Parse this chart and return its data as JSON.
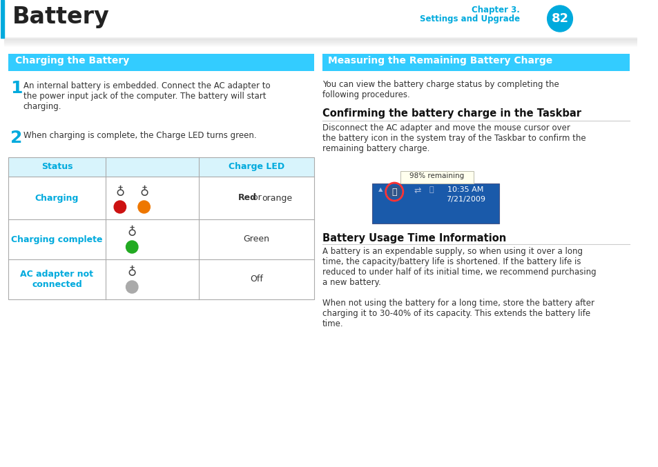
{
  "title": "Battery",
  "page_number": "82",
  "header_left_bar_color": "#00aadd",
  "page_circle_color": "#00aadd",
  "section_left_title": "Charging the Battery",
  "section_right_title": "Measuring the Remaining Battery Charge",
  "section_header_bg": "#33ccff",
  "section_header_text_color": "#ffffff",
  "step1_text": "An internal battery is embedded. Connect the AC adapter to\nthe power input jack of the computer. The battery will start\ncharging.",
  "step2_text": "When charging is complete, the Charge LED turns green.",
  "table_border_color": "#aaaaaa",
  "table_status_color": "#00aadd",
  "subheading1": "Confirming the battery charge in the Taskbar",
  "subheading1_text": "Disconnect the AC adapter and move the mouse cursor over\nthe battery icon in the system tray of the Taskbar to confirm the\nremaining battery charge.",
  "subheading2": "Battery Usage Time Information",
  "subheading2_text1": "A battery is an expendable supply, so when using it over a long\ntime, the capacity/battery life is shortened. If the battery life is\nreduced to under half of its initial time, we recommend purchasing\na new battery.",
  "subheading2_text2": "When not using the battery for a long time, store the battery after\ncharging it to 30-40% of its capacity. This extends the battery life\ntime.",
  "right_intro_text": "You can view the battery charge status by completing the\nfollowing procedures.",
  "taskbar_img_tooltip": "98% remaining",
  "taskbar_img_time": "10:35 AM",
  "taskbar_img_date": "7/21/2009",
  "taskbar_bg": "#1a5aaa",
  "divider_color": "#cccccc",
  "body_text_color": "#333333",
  "background_color": "#ffffff"
}
